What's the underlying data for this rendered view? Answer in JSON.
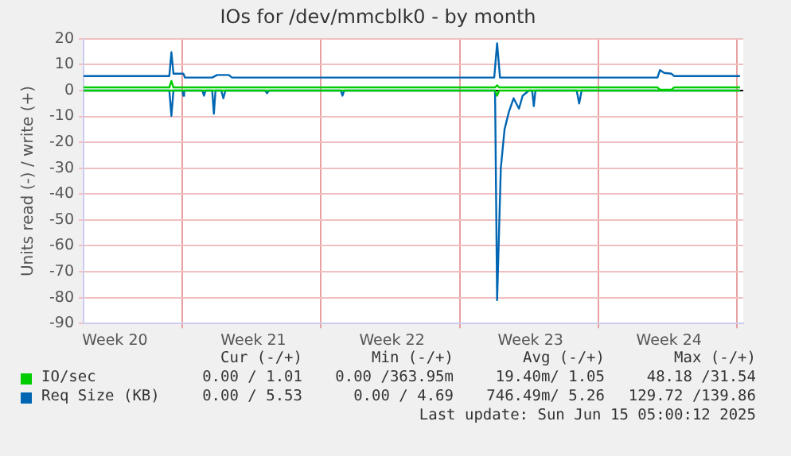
{
  "chart_data": {
    "type": "line",
    "title": "IOs for /dev/mmcblk0 - by month",
    "ylabel": "Units read (-) / write (+)",
    "xlim": [
      "2025-05-14T00:00",
      "2025-06-16T08:00"
    ],
    "xticks": [
      {
        "value": "2025-05-15T14:00",
        "label": "Week 20"
      },
      {
        "value": "2025-05-19T00:00",
        "label": null
      },
      {
        "value": "2025-05-22T14:00",
        "label": "Week 21"
      },
      {
        "value": "2025-05-26T00:00",
        "label": null
      },
      {
        "value": "2025-05-29T14:00",
        "label": "Week 22"
      },
      {
        "value": "2025-06-02T00:00",
        "label": null
      },
      {
        "value": "2025-06-05T14:00",
        "label": "Week 23"
      },
      {
        "value": "2025-06-09T00:00",
        "label": null
      },
      {
        "value": "2025-06-12T14:00",
        "label": "Week 24"
      },
      {
        "value": "2025-06-16T00:00",
        "label": null
      }
    ],
    "ylim": [
      -90,
      20
    ],
    "yticks": [
      -90,
      -80,
      -70,
      -60,
      -50,
      -40,
      -30,
      -20,
      -10,
      0,
      10,
      20
    ],
    "grid": true,
    "legend": "bottom",
    "marker": "none",
    "line_style": "solid",
    "ref_lines": [
      {
        "axis": "y",
        "value": 0,
        "color": "#000000"
      }
    ],
    "series": [
      {
        "name": "IO/sec",
        "color": "#00cc00",
        "x": [
          "2025-05-14T00:00",
          "2025-05-18T08:00",
          "2025-05-18T10:30",
          "2025-05-18T13:00",
          "2025-06-03T19:00",
          "2025-06-03T21:30",
          "2025-06-04T00:00",
          "2025-06-12T00:00",
          "2025-06-12T03:00",
          "2025-06-12T17:00",
          "2025-06-12T20:00",
          "2025-06-16T04:00"
        ],
        "values": [
          1.2,
          1.2,
          3.7,
          1.2,
          1.2,
          2.0,
          1.2,
          1.2,
          0.3,
          0.3,
          1.2,
          1.2
        ]
      },
      {
        "color": "#00cc00",
        "x": [
          "2025-05-14T00:00",
          "2025-06-03T19:00",
          "2025-06-03T21:30",
          "2025-06-04T00:00",
          "2025-06-16T04:00"
        ],
        "values": [
          0,
          0,
          -2,
          0,
          0
        ]
      },
      {
        "name": "Req Size (KB)",
        "color": "#0066b3",
        "x": [
          "2025-05-14T00:00",
          "2025-05-18T08:00",
          "2025-05-18T10:30",
          "2025-05-18T13:00",
          "2025-05-19T01:00",
          "2025-05-19T03:00",
          "2025-05-20T12:00",
          "2025-05-20T18:00",
          "2025-05-21T08:00",
          "2025-05-21T12:00",
          "2025-06-03T18:00",
          "2025-06-03T21:30",
          "2025-06-04T01:00",
          "2025-06-12T00:00",
          "2025-06-12T03:00",
          "2025-06-12T08:00",
          "2025-06-12T17:00",
          "2025-06-12T20:00",
          "2025-06-16T04:00"
        ],
        "values": [
          5.6,
          5.6,
          14.8,
          6.5,
          6.5,
          5.0,
          5.0,
          6.0,
          6.0,
          5.0,
          5.0,
          18.3,
          5.0,
          5.0,
          7.9,
          6.8,
          6.5,
          5.6,
          5.6
        ]
      },
      {
        "color": "#0066b3",
        "x": [
          "2025-05-14T00:00",
          "2025-05-18T08:00",
          "2025-05-18T10:30",
          "2025-05-18T13:00",
          "2025-05-19T00:00",
          "2025-05-19T01:00",
          "2025-05-19T02:00",
          "2025-05-20T00:00",
          "2025-05-20T02:00",
          "2025-05-20T04:00",
          "2025-05-20T12:00",
          "2025-05-20T14:00",
          "2025-05-20T16:00",
          "2025-05-20T23:00",
          "2025-05-21T01:30",
          "2025-05-21T04:00",
          "2025-05-23T04:00",
          "2025-05-23T06:30",
          "2025-05-23T09:00",
          "2025-05-27T00:00",
          "2025-05-27T02:00",
          "2025-05-27T04:00",
          "2025-06-03T19:00",
          "2025-06-03T21:30",
          "2025-06-04T02:00",
          "2025-06-04T06:30",
          "2025-06-04T12:00",
          "2025-06-04T17:30",
          "2025-06-05T00:00",
          "2025-06-05T04:30",
          "2025-06-05T12:00",
          "2025-06-05T16:00",
          "2025-06-05T18:00",
          "2025-06-05T20:00",
          "2025-06-07T22:00",
          "2025-06-08T01:00",
          "2025-06-08T04:00",
          "2025-06-16T04:00"
        ],
        "values": [
          0,
          0,
          -9.8,
          0,
          0,
          -2,
          0,
          0,
          -2,
          0,
          0,
          -9,
          0,
          0,
          -3,
          0,
          0,
          -1,
          0,
          0,
          -2,
          0,
          0,
          -81,
          -30,
          -15,
          -8,
          -3,
          -7,
          -2,
          0,
          0,
          -6,
          0,
          0,
          -5,
          0,
          0
        ]
      }
    ],
    "annotations": [
      "Cur (-/+)",
      "Min (-/+)",
      "Avg (-/+)",
      "Max (-/+)",
      "0.00 / 1.01",
      "0.00 /363.95m",
      "19.40m/ 1.05",
      "48.18 /31.54",
      "0.00 / 5.53",
      "0.00 / 4.69",
      "746.49m/ 5.26",
      "129.72 /139.86",
      "Last update: Sun Jun 15 05:00:12 2025"
    ]
  }
}
